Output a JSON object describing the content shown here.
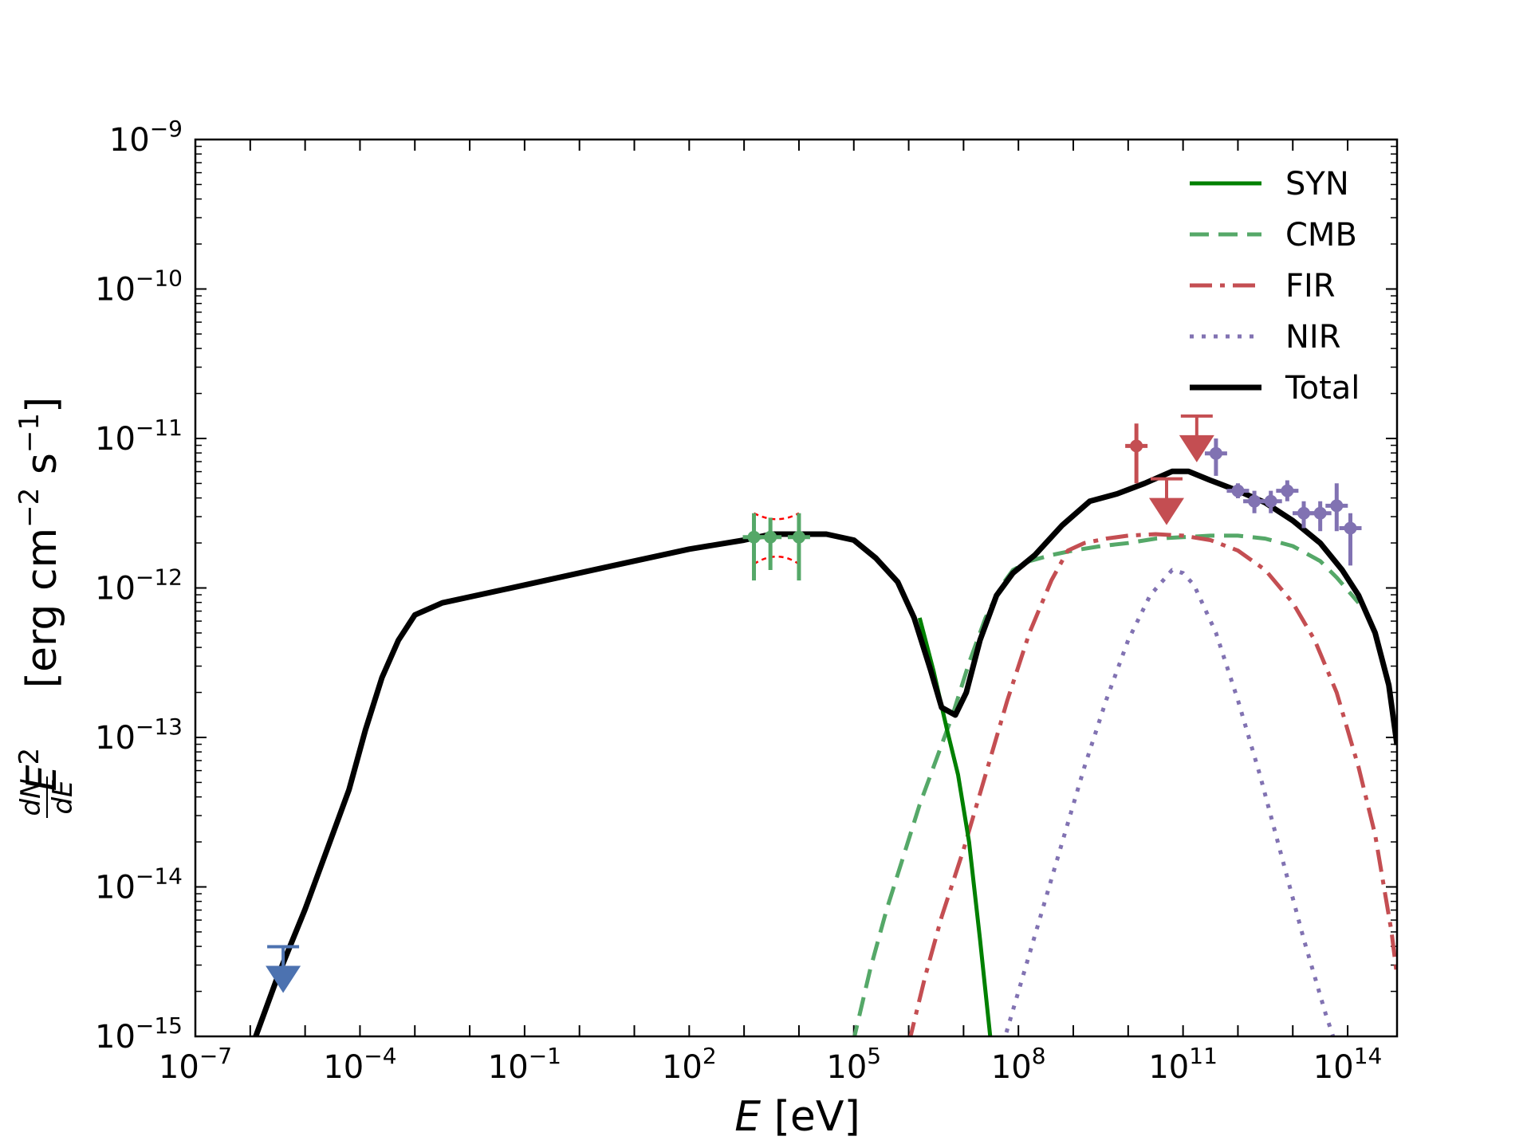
{
  "chart_data": {
    "type": "line",
    "title": "",
    "xlabel": "E [eV]",
    "ylabel": "E² dN/dE [erg cm⁻² s⁻¹]",
    "xlabel_parts": {
      "var": "E",
      "unit": " [eV]"
    },
    "ylabel_parts": {
      "var": "E",
      "exp": "2",
      "num": "dN",
      "den": "dE",
      "unit": " [erg cm",
      "unit_exp1": "−2",
      "unit_mid": " s",
      "unit_exp2": "−1",
      "unit_end": "]"
    },
    "xscale": "log",
    "yscale": "log",
    "xlim_log10": [
      -7,
      14.9
    ],
    "ylim_log10": [
      -15,
      -9
    ],
    "x_ticks": [
      {
        "log": -7,
        "base": "10",
        "exp": "−7"
      },
      {
        "log": -4,
        "base": "10",
        "exp": "−4"
      },
      {
        "log": -1,
        "base": "10",
        "exp": "−1"
      },
      {
        "log": 2,
        "base": "10",
        "exp": "2"
      },
      {
        "log": 5,
        "base": "10",
        "exp": "5"
      },
      {
        "log": 8,
        "base": "10",
        "exp": "8"
      },
      {
        "log": 11,
        "base": "10",
        "exp": "11"
      },
      {
        "log": 14,
        "base": "10",
        "exp": "14"
      }
    ],
    "y_ticks": [
      {
        "log": -15,
        "base": "10",
        "exp": "−15"
      },
      {
        "log": -14,
        "base": "10",
        "exp": "−14"
      },
      {
        "log": -13,
        "base": "10",
        "exp": "−13"
      },
      {
        "log": -12,
        "base": "10",
        "exp": "−12"
      },
      {
        "log": -11,
        "base": "10",
        "exp": "−11"
      },
      {
        "log": -10,
        "base": "10",
        "exp": "−10"
      },
      {
        "log": -9,
        "base": "10",
        "exp": "−9"
      }
    ],
    "legend_position": "top-right",
    "series": [
      {
        "name": "SYN",
        "color": "#008000",
        "style": "solid",
        "log_x": [
          6.2,
          6.45,
          6.7,
          6.9,
          7.1,
          7.3,
          7.5
        ],
        "log_y": [
          -12.2,
          -12.55,
          -12.95,
          -13.25,
          -13.7,
          -14.35,
          -15.05
        ]
      },
      {
        "name": "CMB",
        "color": "#55a868",
        "style": "dashed",
        "log_x": [
          4.98,
          5.3,
          5.6,
          5.9,
          6.2,
          6.5,
          6.8,
          7.1,
          7.4,
          7.7,
          7.9,
          8.2,
          8.6,
          9.0,
          9.5,
          10.0,
          10.5,
          11.0,
          11.5,
          12.0,
          12.5,
          13.0,
          13.5,
          13.8,
          14.2
        ],
        "log_y": [
          -15.05,
          -14.55,
          -14.15,
          -13.8,
          -13.45,
          -13.15,
          -12.85,
          -12.5,
          -12.2,
          -11.98,
          -11.88,
          -11.82,
          -11.78,
          -11.75,
          -11.72,
          -11.7,
          -11.67,
          -11.66,
          -11.65,
          -11.65,
          -11.67,
          -11.72,
          -11.82,
          -11.93,
          -12.1
        ]
      },
      {
        "name": "FIR",
        "color": "#c44e52",
        "style": "dashdot",
        "log_x": [
          6.0,
          6.3,
          6.6,
          7.0,
          7.4,
          7.8,
          8.2,
          8.6,
          8.9,
          9.2,
          9.6,
          10.0,
          10.5,
          11.0,
          11.5,
          12.0,
          12.5,
          13.0,
          13.4,
          13.8,
          14.2,
          14.5,
          14.8,
          14.9
        ],
        "log_y": [
          -15.05,
          -14.6,
          -14.2,
          -13.75,
          -13.25,
          -12.75,
          -12.3,
          -11.95,
          -11.75,
          -11.7,
          -11.67,
          -11.65,
          -11.64,
          -11.65,
          -11.68,
          -11.75,
          -11.88,
          -12.1,
          -12.35,
          -12.7,
          -13.2,
          -13.65,
          -14.3,
          -14.6
        ]
      },
      {
        "name": "NIR",
        "color": "#8172b2",
        "style": "dotted",
        "log_x": [
          7.72,
          8.0,
          8.4,
          8.8,
          9.2,
          9.6,
          10.0,
          10.4,
          10.8,
          11.0,
          11.2,
          11.6,
          12.0,
          12.4,
          12.8,
          13.2,
          13.6,
          13.78
        ],
        "log_y": [
          -15.05,
          -14.7,
          -14.2,
          -13.7,
          -13.2,
          -12.75,
          -12.35,
          -12.05,
          -11.88,
          -11.9,
          -11.98,
          -12.3,
          -12.75,
          -13.25,
          -13.8,
          -14.35,
          -14.85,
          -15.05
        ]
      },
      {
        "name": "Total",
        "color": "#000000",
        "style": "solid",
        "log_x": [
          -5.95,
          -5.5,
          -5.0,
          -4.6,
          -4.2,
          -3.9,
          -3.6,
          -3.3,
          -3.0,
          -2.5,
          -1.0,
          0.5,
          2.0,
          3.0,
          3.5,
          4.0,
          4.5,
          5.0,
          5.4,
          5.8,
          6.1,
          6.4,
          6.6,
          6.85,
          7.05,
          7.3,
          7.6,
          7.9,
          8.3,
          8.8,
          9.3,
          9.8,
          10.3,
          10.8,
          11.1,
          11.5,
          12.0,
          12.5,
          13.0,
          13.5,
          13.9,
          14.2,
          14.5,
          14.75,
          14.9
        ],
        "log_y": [
          -15.05,
          -14.6,
          -14.15,
          -13.75,
          -13.35,
          -12.95,
          -12.6,
          -12.35,
          -12.18,
          -12.1,
          -11.98,
          -11.86,
          -11.74,
          -11.68,
          -11.64,
          -11.64,
          -11.64,
          -11.68,
          -11.8,
          -11.96,
          -12.2,
          -12.55,
          -12.8,
          -12.85,
          -12.7,
          -12.35,
          -12.05,
          -11.9,
          -11.78,
          -11.58,
          -11.42,
          -11.37,
          -11.3,
          -11.22,
          -11.22,
          -11.28,
          -11.35,
          -11.43,
          -11.55,
          -11.7,
          -11.88,
          -12.05,
          -12.3,
          -12.65,
          -13.05
        ]
      }
    ],
    "data_points": [
      {
        "group": "radio_ul",
        "color": "#4c72b0",
        "kind": "upper-limit",
        "log_x": -5.4,
        "log_y": -14.4
      },
      {
        "group": "xray",
        "color": "#55a868",
        "kind": "point",
        "log_x": 3.18,
        "log_y": -11.66,
        "log_y_low": -11.95,
        "log_y_high": -11.5
      },
      {
        "group": "xray",
        "color": "#55a868",
        "kind": "point",
        "log_x": 3.48,
        "log_y": -11.66,
        "log_y_low": -11.88,
        "log_y_high": -11.53
      },
      {
        "group": "xray",
        "color": "#55a868",
        "kind": "point",
        "log_x": 4.0,
        "log_y": -11.66,
        "log_y_low": -11.95,
        "log_y_high": -11.5
      },
      {
        "group": "fermi",
        "color": "#c44e52",
        "kind": "point",
        "log_x": 10.15,
        "log_y": -11.05,
        "log_y_low": -11.3,
        "log_y_high": -10.9
      },
      {
        "group": "fermi",
        "color": "#c44e52",
        "kind": "upper-limit",
        "log_x": 10.7,
        "log_y": -11.27
      },
      {
        "group": "fermi",
        "color": "#c44e52",
        "kind": "upper-limit",
        "log_x": 11.25,
        "log_y": -10.85
      },
      {
        "group": "tev",
        "color": "#8172b2",
        "kind": "point",
        "log_x": 11.6,
        "log_y": -11.1,
        "log_y_low": -11.25,
        "log_y_high": -11.0
      },
      {
        "group": "tev",
        "color": "#8172b2",
        "kind": "point",
        "log_x": 12.0,
        "log_y": -11.35,
        "log_y_low": -11.4,
        "log_y_high": -11.3
      },
      {
        "group": "tev",
        "color": "#8172b2",
        "kind": "point",
        "log_x": 12.3,
        "log_y": -11.42,
        "log_y_low": -11.5,
        "log_y_high": -11.35
      },
      {
        "group": "tev",
        "color": "#8172b2",
        "kind": "point",
        "log_x": 12.6,
        "log_y": -11.42,
        "log_y_low": -11.5,
        "log_y_high": -11.35
      },
      {
        "group": "tev",
        "color": "#8172b2",
        "kind": "point",
        "log_x": 12.9,
        "log_y": -11.35,
        "log_y_low": -11.42,
        "log_y_high": -11.28
      },
      {
        "group": "tev",
        "color": "#8172b2",
        "kind": "point",
        "log_x": 13.2,
        "log_y": -11.5,
        "log_y_low": -11.6,
        "log_y_high": -11.42
      },
      {
        "group": "tev",
        "color": "#8172b2",
        "kind": "point",
        "log_x": 13.5,
        "log_y": -11.5,
        "log_y_low": -11.62,
        "log_y_high": -11.42
      },
      {
        "group": "tev",
        "color": "#8172b2",
        "kind": "point",
        "log_x": 13.8,
        "log_y": -11.45,
        "log_y_low": -11.62,
        "log_y_high": -11.3
      },
      {
        "group": "tev",
        "color": "#8172b2",
        "kind": "point",
        "log_x": 14.05,
        "log_y": -11.6,
        "log_y_low": -11.85,
        "log_y_high": -11.5
      }
    ],
    "bowtie": {
      "color": "#ff0000",
      "log_x": [
        3.18,
        4.0
      ],
      "upper_log_y": [
        -11.5,
        -11.5
      ],
      "lower_log_y": [
        -11.84,
        -11.84
      ],
      "pivot_log_x": 3.6,
      "pivot_upper": -11.58,
      "pivot_lower": -11.74
    }
  }
}
